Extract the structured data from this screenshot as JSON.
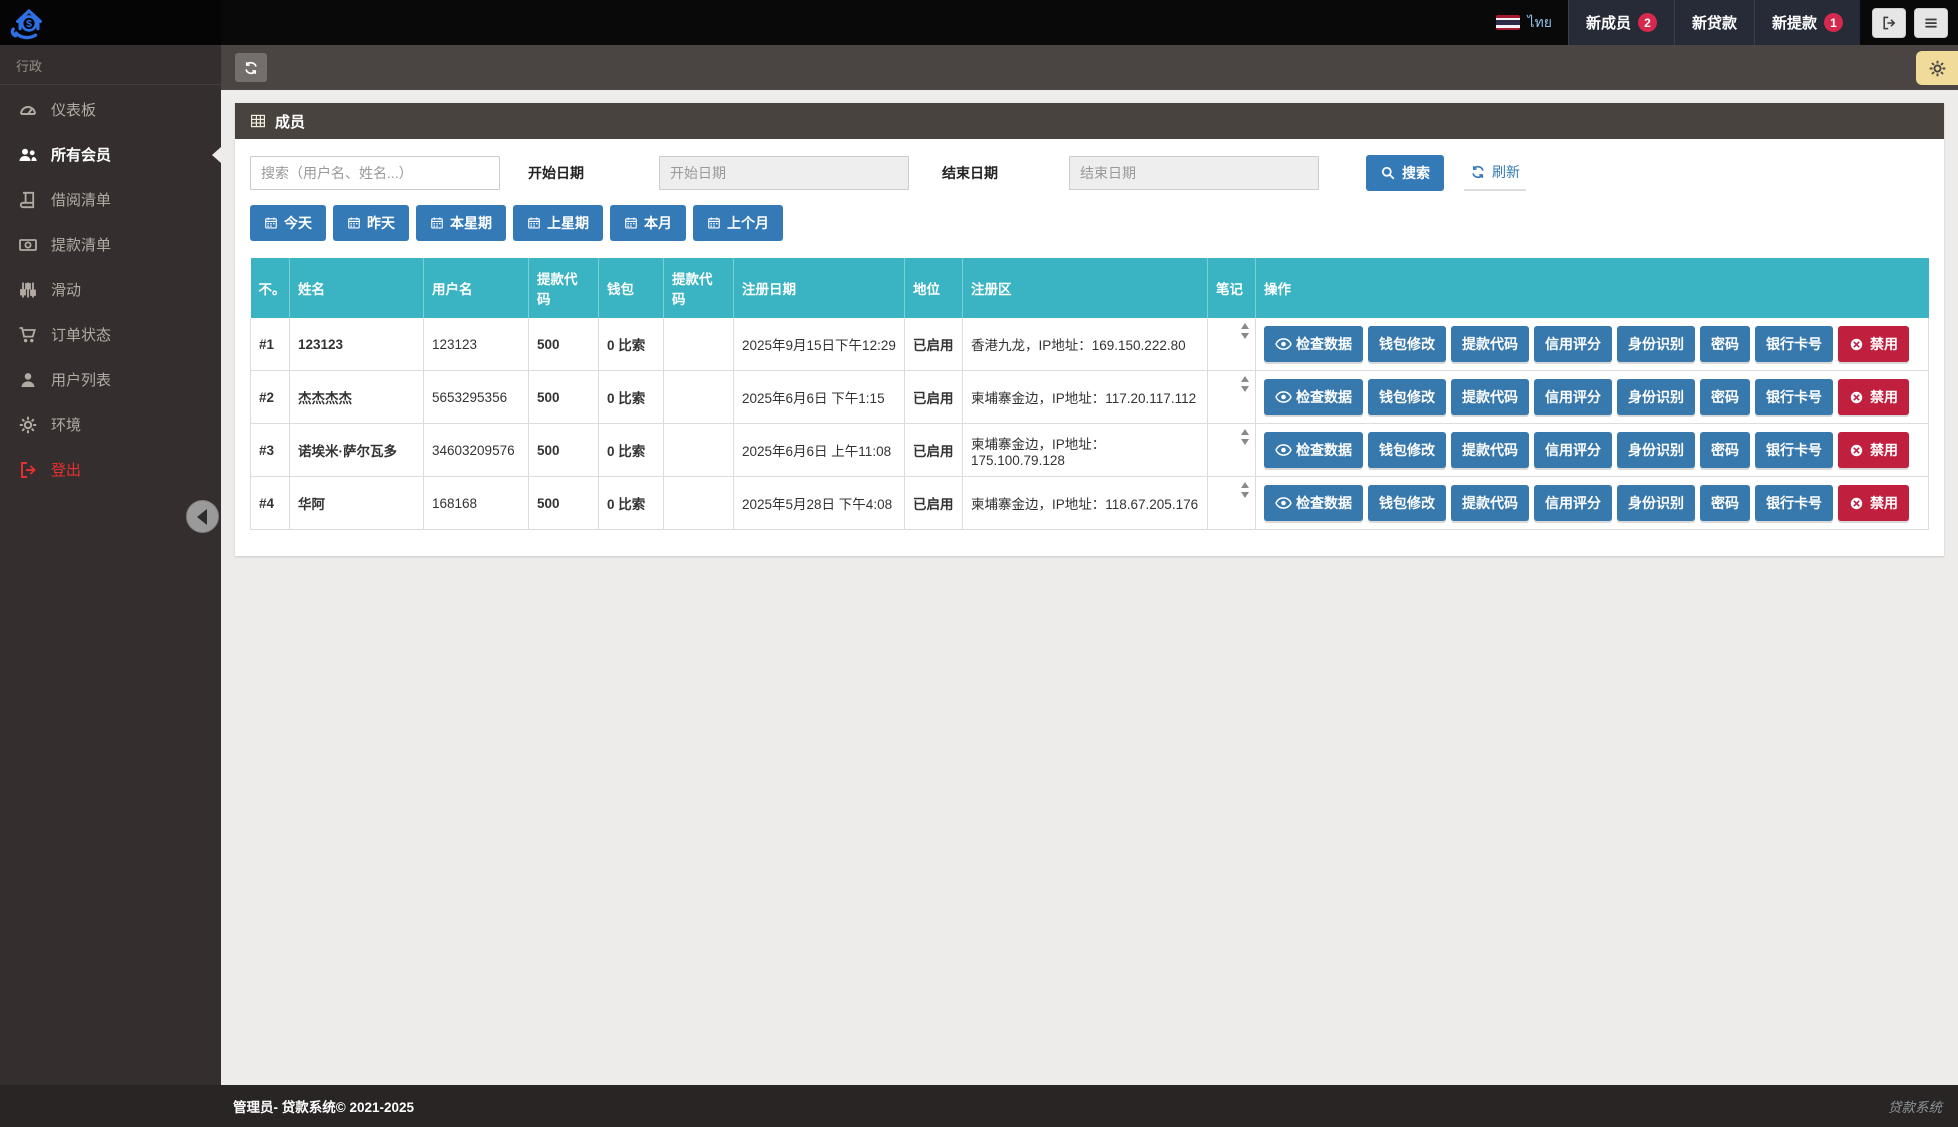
{
  "topbar": {
    "lang_label": "ไทย",
    "nav_items": [
      {
        "label": "新成员",
        "badge": "2"
      },
      {
        "label": "新贷款",
        "badge": ""
      },
      {
        "label": "新提款",
        "badge": "1"
      }
    ]
  },
  "sidebar": {
    "section_label": "行政",
    "items": [
      {
        "label": "仪表板",
        "icon": "dashboard-icon",
        "active": false,
        "danger": false
      },
      {
        "label": "所有会员",
        "icon": "users-icon",
        "active": true,
        "danger": false
      },
      {
        "label": "借阅清单",
        "icon": "book-icon",
        "active": false,
        "danger": false
      },
      {
        "label": "提款清单",
        "icon": "banknote-icon",
        "active": false,
        "danger": false
      },
      {
        "label": "滑动",
        "icon": "sliders-icon",
        "active": false,
        "danger": false
      },
      {
        "label": "订单状态",
        "icon": "cart-icon",
        "active": false,
        "danger": false
      },
      {
        "label": "用户列表",
        "icon": "user-icon",
        "active": false,
        "danger": false
      },
      {
        "label": "环境",
        "icon": "gear-icon",
        "active": false,
        "danger": false
      },
      {
        "label": "登出",
        "icon": "signout-icon",
        "active": false,
        "danger": true
      }
    ]
  },
  "panel": {
    "title": "成员"
  },
  "filters": {
    "search_placeholder": "搜索（用户名、姓名...）",
    "start_label": "开始日期",
    "start_placeholder": "开始日期",
    "end_label": "结束日期",
    "end_placeholder": "结束日期",
    "search_button": "搜索",
    "refresh_button": "刷新",
    "quick_buttons": [
      "今天",
      "昨天",
      "本星期",
      "上星期",
      "本月",
      "上个月"
    ]
  },
  "table": {
    "headers": [
      "不。",
      "姓名",
      "用户名",
      "提款代码",
      "钱包",
      "提款代码",
      "注册日期",
      "地位",
      "注册区",
      "笔记",
      "操作"
    ],
    "action_buttons": [
      "检查数据",
      "钱包修改",
      "提款代码",
      "信用评分",
      "身份识别",
      "密码",
      "银行卡号"
    ],
    "disable_button": "禁用",
    "rows": [
      {
        "no": "#1",
        "name": "123123",
        "username": "123123",
        "code": "500",
        "wallet": "0 比索",
        "wcode": "",
        "date": "2025年9月15日下午12:29",
        "status": "已启用",
        "region": "香港九龙，IP地址：169.150.222.80"
      },
      {
        "no": "#2",
        "name": "杰杰杰杰",
        "username": "5653295356",
        "code": "500",
        "wallet": "0 比索",
        "wcode": "",
        "date": "2025年6月6日 下午1:15",
        "status": "已启用",
        "region": "柬埔寨金边，IP地址：117.20.117.112"
      },
      {
        "no": "#3",
        "name": "诺埃米·萨尔瓦多",
        "username": "34603209576",
        "code": "500",
        "wallet": "0 比索",
        "wcode": "",
        "date": "2025年6月6日 上午11:08",
        "status": "已启用",
        "region": "柬埔寨金边，IP地址：175.100.79.128"
      },
      {
        "no": "#4",
        "name": "华阿",
        "username": "168168",
        "code": "500",
        "wallet": "0 比索",
        "wcode": "",
        "date": "2025年5月28日 下午4:08",
        "status": "已启用",
        "region": "柬埔寨金边，IP地址：118.67.205.176"
      }
    ]
  },
  "footer": {
    "left": "管理员- 贷款系统© 2021-2025",
    "right": "贷款系统"
  },
  "colors": {
    "accent_blue": "#337ab7",
    "action_blue": "#3879ad",
    "table_header_teal": "#3ab4c2",
    "badge_red": "#d5294d",
    "disable_red": "#c01f3e",
    "status_blue": "#3a46cf",
    "wallet_teal": "#2fa4b5",
    "gear_tab_yellow": "#f1db9b"
  }
}
